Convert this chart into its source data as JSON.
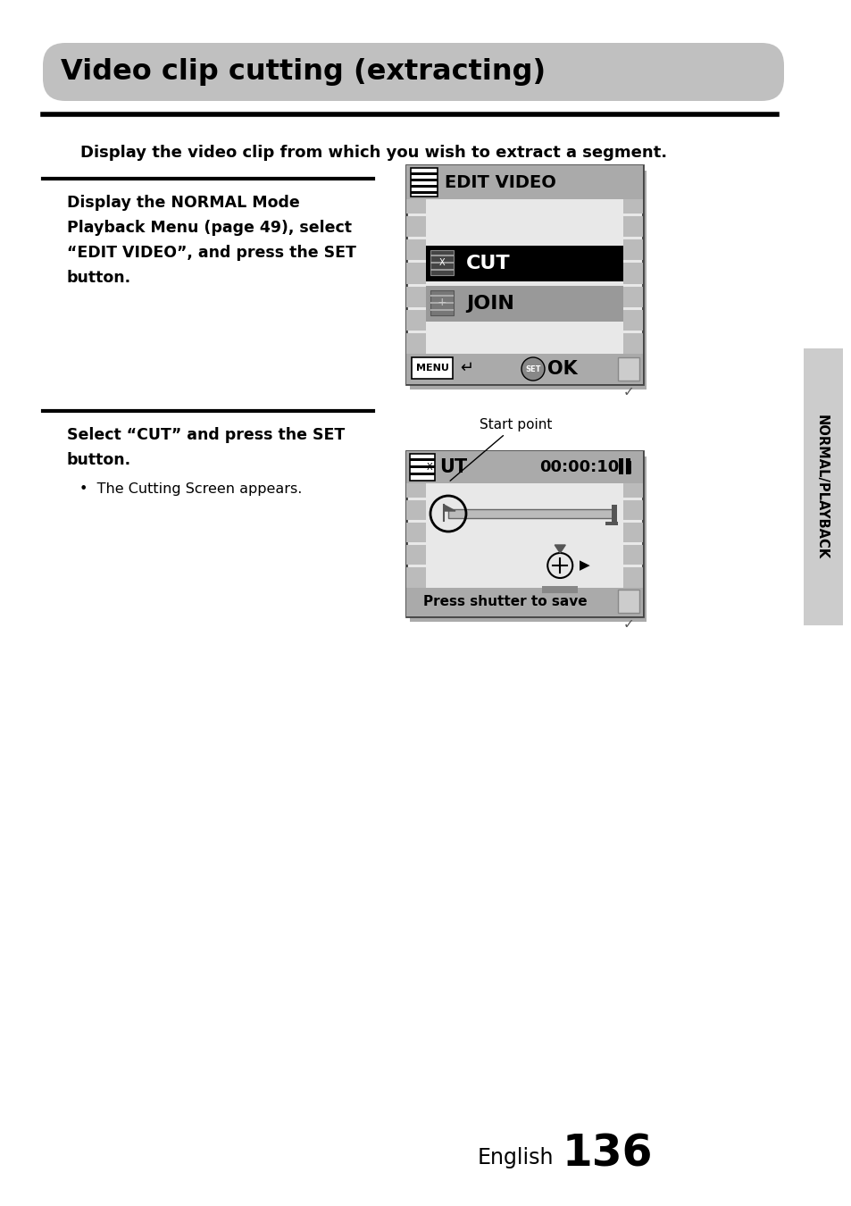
{
  "title": "Video clip cutting (extracting)",
  "title_bg": "#c0c0c0",
  "page_bg": "#ffffff",
  "line1_text": "Display the video clip from which you wish to extract a segment.",
  "section1_left_lines": [
    "Display the NORMAL Mode",
    "Playback Menu (page 49), select",
    "“EDIT VIDEO”, and press the SET",
    "button."
  ],
  "section2_left_lines": [
    "Select “CUT” and press the SET",
    "button."
  ],
  "section2_bullet": "The Cutting Screen appears.",
  "sidebar_text": "NORMAL/PLAYBACK",
  "footer_text": "English",
  "footer_num": "136",
  "edit_video_title": "EDIT VIDEO",
  "cut_label": "CUT",
  "join_label": "JOIN",
  "menu_label": "MENU",
  "ok_label": "OK",
  "cut_screen_label": "UT",
  "cut_time": "00:00:10",
  "start_point_label": "Start point",
  "press_shutter_label": "Press shutter to save"
}
